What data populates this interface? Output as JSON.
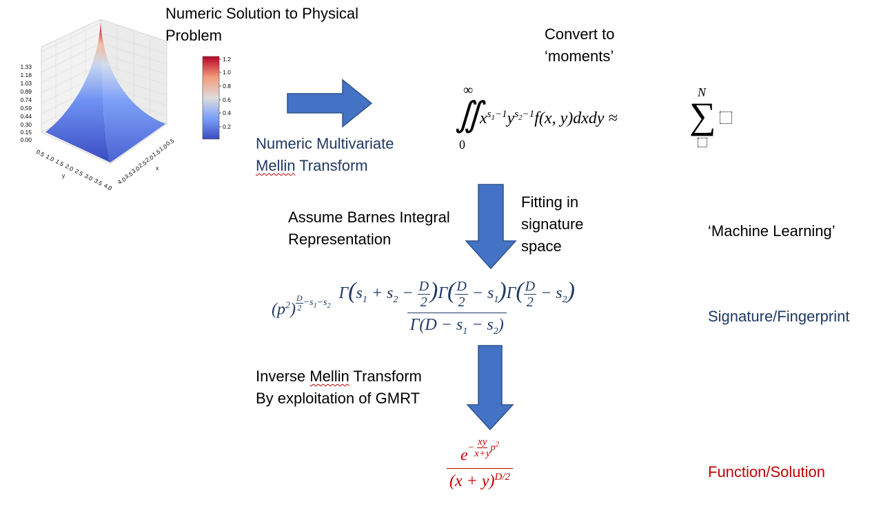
{
  "title_numeric": "Numeric Solution to Physical Problem",
  "title_numeric_line1": "Numeric Solution to Physical",
  "title_numeric_line2": "Problem",
  "convert_line1": "Convert to",
  "convert_line2": "‘moments’",
  "mellin_line1": "Numeric Multivariate",
  "mellin_line2_a": "Mellin",
  "mellin_line2_b": " Transform",
  "assume_line1": "Assume Barnes Integral",
  "assume_line2": "Representation",
  "fitting_line1": "Fitting in",
  "fitting_line2": "signature",
  "fitting_line3": "space",
  "machine_learning": "‘Machine Learning’",
  "signature": "Signature/Fingerprint",
  "inverse_line1_a": "Inverse ",
  "inverse_line1_b": "Mellin",
  "inverse_line1_c": " Transform",
  "inverse_line2": "By exploitation of GMRT",
  "function_solution": "Function/Solution",
  "colors": {
    "arrow": "#4472c4",
    "arrow_edge": "#2f528f",
    "navy": "#1f3864",
    "red": "#c00000"
  },
  "plot": {
    "z_ticks": [
      "1.33",
      "1.18",
      "1.03",
      "0.89",
      "0.74",
      "0.59",
      "0.44",
      "0.30",
      "0.15",
      "0.00"
    ],
    "y_ticks": [
      "0.5",
      "1.0",
      "1.5",
      "2.0",
      "2.5",
      "3.0",
      "3.5",
      "4.0"
    ],
    "x_ticks": [
      "0.5",
      "1.0",
      "1.5",
      "2.0",
      "2.5",
      "3.0",
      "3.5",
      "4.0"
    ],
    "y_label": "y",
    "x_label": "x",
    "colorbar_ticks": [
      "1.2",
      "1.0",
      "0.8",
      "0.6",
      "0.4",
      "0.2"
    ]
  },
  "eq_moments": {
    "upper_limit": "∞",
    "lower_limit": "0",
    "sum_upper": "N"
  }
}
